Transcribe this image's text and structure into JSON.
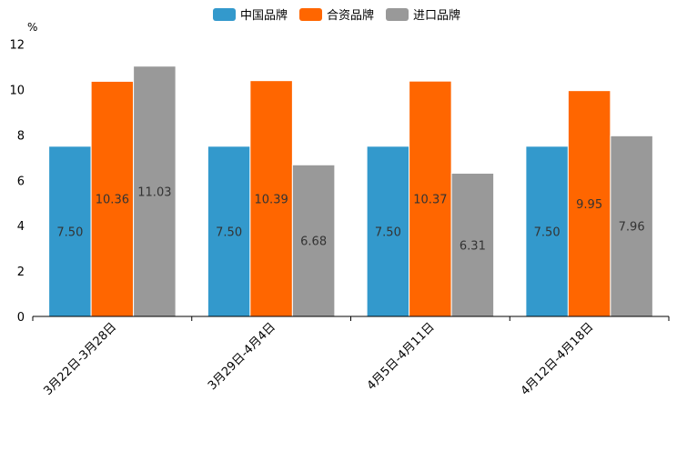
{
  "chart_data": {
    "type": "bar",
    "ylabel": "%",
    "ylim": [
      0,
      12
    ],
    "yticks": [
      0,
      2,
      4,
      6,
      8,
      10,
      12
    ],
    "categories": [
      "3月22日-3月28日",
      "3月29日-4月4日",
      "4月5日-4月11日",
      "4月12日-4月18日"
    ],
    "series": [
      {
        "name": "中国品牌",
        "color": "#3399cc",
        "values": [
          7.5,
          7.5,
          7.5,
          7.5
        ],
        "labels": [
          "7.50",
          "7.50",
          "7.50",
          "7.50"
        ]
      },
      {
        "name": "合资品牌",
        "color": "#ff6600",
        "values": [
          10.36,
          10.39,
          10.37,
          9.95
        ],
        "labels": [
          "10.36",
          "10.39",
          "10.37",
          "9.95"
        ]
      },
      {
        "name": "进口品牌",
        "color": "#999999",
        "values": [
          11.03,
          6.68,
          6.31,
          7.96
        ],
        "labels": [
          "11.03",
          "6.68",
          "6.31",
          "7.96"
        ]
      }
    ],
    "legend_position": "top-center",
    "grid": false
  }
}
